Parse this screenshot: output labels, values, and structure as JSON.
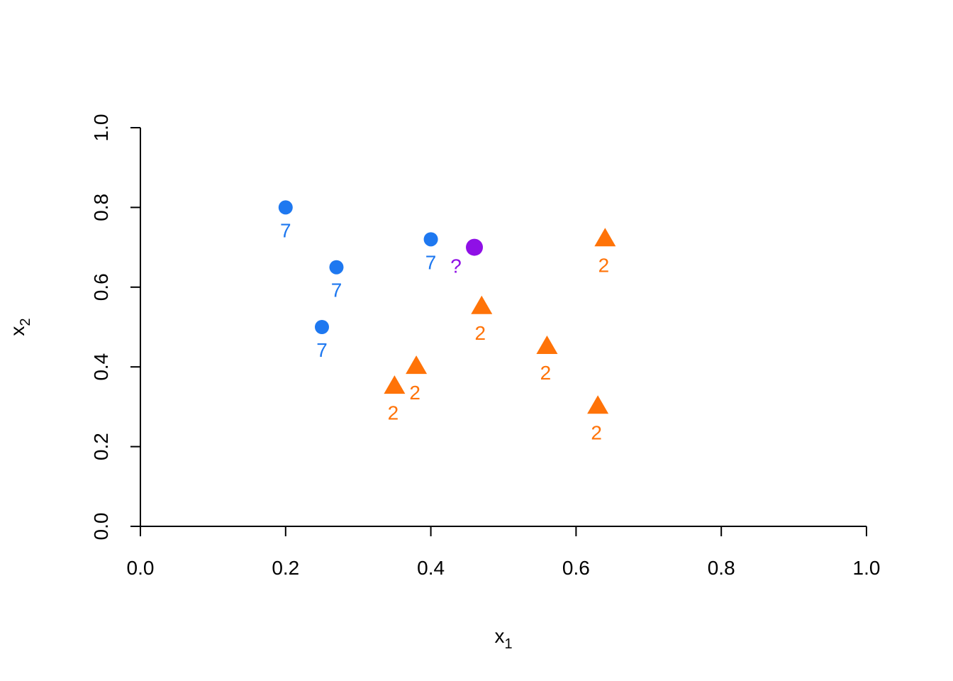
{
  "chart_data": {
    "type": "scatter",
    "title": "",
    "xlabel": "x",
    "xlabel_sub": "1",
    "ylabel": "x",
    "ylabel_sub": "2",
    "xlim": [
      0,
      1
    ],
    "ylim": [
      0,
      1
    ],
    "xticks": [
      "0.0",
      "0.2",
      "0.4",
      "0.6",
      "0.8",
      "1.0"
    ],
    "yticks": [
      "0.0",
      "0.2",
      "0.4",
      "0.6",
      "0.8",
      "1.0"
    ],
    "grid": false,
    "legend": "none",
    "series": [
      {
        "marker": "circle",
        "color": "#1e78f0",
        "points": [
          {
            "x": 0.2,
            "y": 0.8,
            "label": "7"
          },
          {
            "x": 0.27,
            "y": 0.65,
            "label": "7"
          },
          {
            "x": 0.25,
            "y": 0.5,
            "label": "7"
          },
          {
            "x": 0.4,
            "y": 0.72,
            "label": "7"
          }
        ]
      },
      {
        "marker": "triangle",
        "color": "#ff7308",
        "points": [
          {
            "x": 0.64,
            "y": 0.72,
            "label": "2"
          },
          {
            "x": 0.47,
            "y": 0.55,
            "label": "2"
          },
          {
            "x": 0.56,
            "y": 0.45,
            "label": "2"
          },
          {
            "x": 0.38,
            "y": 0.4,
            "label": "2"
          },
          {
            "x": 0.35,
            "y": 0.35,
            "label": "2"
          },
          {
            "x": 0.63,
            "y": 0.3,
            "label": "2"
          }
        ]
      },
      {
        "marker": "circle-large",
        "color": "#8f10e6",
        "points": [
          {
            "x": 0.46,
            "y": 0.7,
            "label": "?"
          }
        ]
      }
    ]
  }
}
